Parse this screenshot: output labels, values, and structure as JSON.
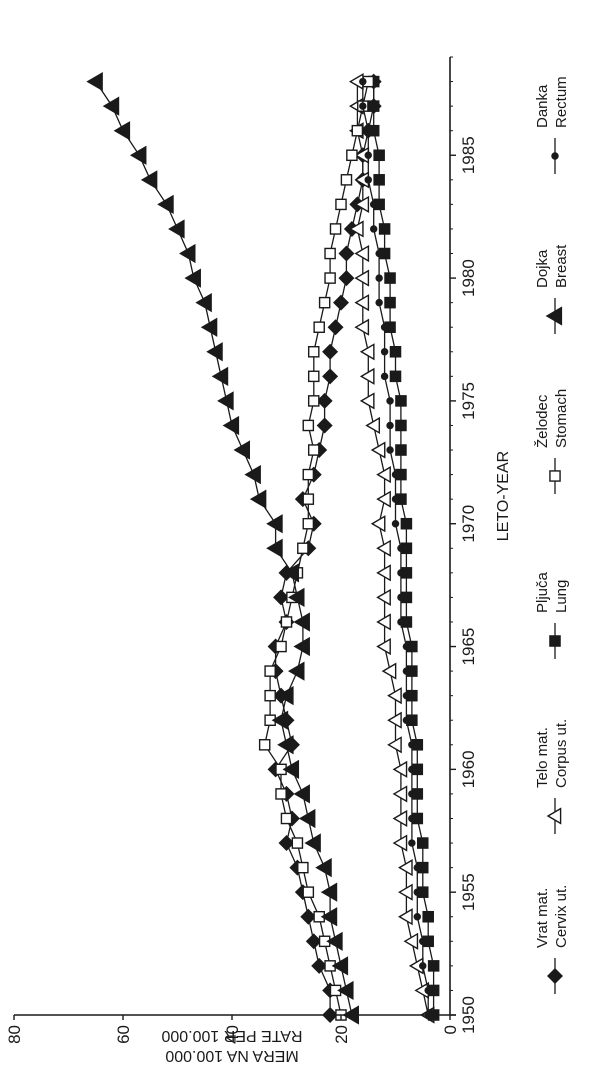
{
  "chart_data": {
    "type": "line",
    "orientation": "rotated-90-ccw",
    "xlabel": "LETO-YEAR",
    "ylabel_lines": [
      "MERA NA 100.000",
      "RATE PER 100.000"
    ],
    "xlim": [
      1950,
      1989
    ],
    "ylim": [
      0,
      80
    ],
    "x_ticks": [
      1950,
      1955,
      1960,
      1965,
      1970,
      1975,
      1980,
      1985
    ],
    "y_ticks": [
      0,
      20,
      40,
      60,
      80
    ],
    "legend_placement": "bottom",
    "grid": false,
    "x": [
      1950,
      1951,
      1952,
      1953,
      1954,
      1955,
      1956,
      1957,
      1958,
      1959,
      1960,
      1961,
      1962,
      1963,
      1964,
      1965,
      1966,
      1967,
      1968,
      1969,
      1970,
      1971,
      1972,
      1973,
      1974,
      1975,
      1976,
      1977,
      1978,
      1979,
      1980,
      1981,
      1982,
      1983,
      1984,
      1985,
      1986,
      1987,
      1988
    ],
    "series": [
      {
        "key": "cervix",
        "name_line1": "Vrat mat.",
        "name_line2": "Cervix ut.",
        "marker": "diamond",
        "filled": true,
        "values": [
          22,
          22,
          24,
          25,
          26,
          27,
          28,
          30,
          29,
          30,
          32,
          29,
          30,
          31,
          32,
          32,
          30,
          31,
          30,
          26,
          25,
          27,
          25,
          24,
          23,
          23,
          22,
          22,
          21,
          20,
          19,
          19,
          18,
          17,
          16,
          16,
          15,
          14,
          14
        ]
      },
      {
        "key": "corpus",
        "name_line1": "Telo mat.",
        "name_line2": "Corpus ut.",
        "marker": "triangle",
        "filled": false,
        "values": [
          4,
          5,
          6,
          7,
          8,
          8,
          8,
          9,
          9,
          9,
          9,
          10,
          10,
          10,
          11,
          12,
          12,
          12,
          12,
          12,
          13,
          12,
          12,
          13,
          14,
          15,
          15,
          15,
          16,
          16,
          16,
          16,
          17,
          16,
          16,
          16,
          17,
          17,
          17
        ]
      },
      {
        "key": "lung",
        "name_line1": "Pljuča",
        "name_line2": "Lung",
        "marker": "square",
        "filled": true,
        "values": [
          3,
          3,
          3,
          4,
          4,
          5,
          5,
          5,
          6,
          6,
          6,
          6,
          7,
          7,
          7,
          7,
          8,
          8,
          8,
          8,
          8,
          9,
          9,
          9,
          9,
          9,
          10,
          10,
          11,
          11,
          11,
          12,
          12,
          13,
          13,
          13,
          14,
          14,
          14
        ]
      },
      {
        "key": "stomach",
        "name_line1": "Želodec",
        "name_line2": "Stomach",
        "marker": "square",
        "filled": false,
        "values": [
          20,
          21,
          22,
          23,
          24,
          26,
          27,
          28,
          30,
          31,
          31,
          34,
          33,
          33,
          33,
          31,
          30,
          29,
          28,
          27,
          26,
          26,
          26,
          25,
          26,
          25,
          25,
          25,
          24,
          23,
          22,
          22,
          21,
          20,
          19,
          18,
          17,
          16,
          15
        ]
      },
      {
        "key": "breast",
        "name_line1": "Dojka",
        "name_line2": "Breast",
        "marker": "triangle",
        "filled": true,
        "values": [
          18,
          19,
          20,
          21,
          22,
          22,
          23,
          25,
          26,
          27,
          29,
          30,
          31,
          30,
          28,
          27,
          27,
          28,
          29,
          32,
          32,
          35,
          36,
          38,
          40,
          41,
          42,
          43,
          44,
          45,
          47,
          48,
          50,
          52,
          55,
          57,
          60,
          62,
          65
        ]
      },
      {
        "key": "rectum",
        "name_line1": "Danka",
        "name_line2": "Rectum",
        "marker": "circle",
        "filled": true,
        "values": [
          4,
          4,
          5,
          5,
          6,
          6,
          6,
          7,
          7,
          7,
          7,
          7,
          8,
          8,
          8,
          8,
          9,
          9,
          9,
          9,
          10,
          10,
          10,
          11,
          11,
          11,
          12,
          12,
          12,
          13,
          13,
          13,
          14,
          14,
          15,
          15,
          15,
          16,
          16
        ]
      }
    ]
  }
}
